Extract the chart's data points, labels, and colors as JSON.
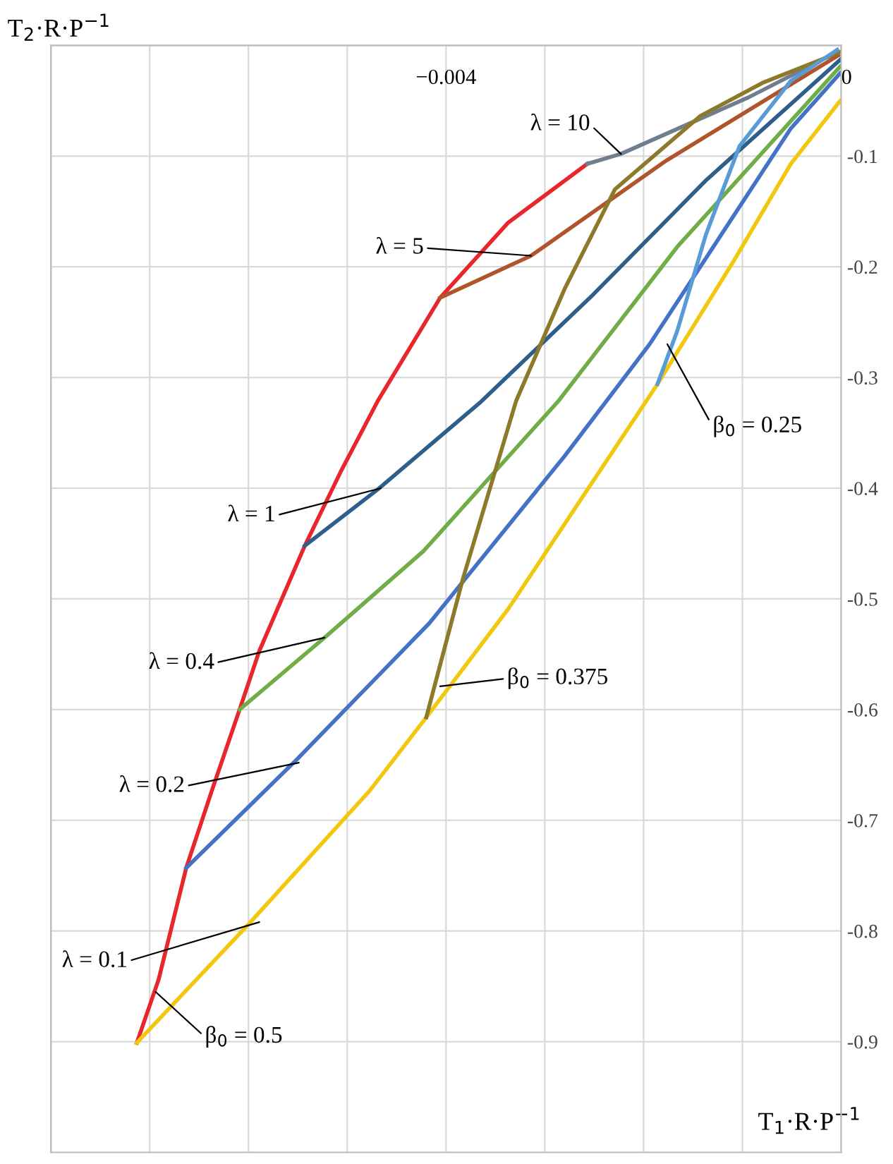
{
  "chart_data": {
    "type": "line",
    "xlabel": "T$_{1}$·R·P$^{−1}$",
    "ylabel": "T$_{2}$·R·P$^{−1}$",
    "xlim": [
      -0.008,
      0
    ],
    "ylim": [
      -1,
      0
    ],
    "xticks": [
      {
        "value": -0.008,
        "label": null
      },
      {
        "value": -0.007,
        "label": null
      },
      {
        "value": -0.006,
        "label": null
      },
      {
        "value": -0.005,
        "label": null
      },
      {
        "value": -0.004,
        "label": "−0.004"
      },
      {
        "value": -0.003,
        "label": null
      },
      {
        "value": -0.002,
        "label": null
      },
      {
        "value": -0.001,
        "label": null
      },
      0
    ],
    "yticks": [
      {
        "value": 0,
        "label": null
      },
      -0.1,
      -0.2,
      -0.3,
      -0.4,
      -0.5,
      -0.6,
      -0.7,
      -0.8,
      -0.9
    ],
    "grid": true,
    "legend": false,
    "marker": "none",
    "line_style": "solid",
    "series": [
      {
        "color": "#e8262b",
        "x": [
          -0.00713,
          -0.00691,
          -0.00663,
          -0.00637,
          -0.00609,
          -0.00589,
          -0.00543,
          -0.00506,
          -0.00469,
          -0.00406,
          -0.00337,
          -0.00257
        ],
        "values": [
          -0.901,
          -0.844,
          -0.743,
          -0.673,
          -0.6,
          -0.547,
          -0.452,
          -0.384,
          -0.321,
          -0.228,
          -0.16,
          -0.107
        ]
      },
      {
        "color": "#6f7f90",
        "x": [
          -0.00257,
          -0.00223,
          -0.00094,
          -4e-05
        ],
        "values": [
          -0.107,
          -0.098,
          -0.047,
          -0.006
        ]
      },
      {
        "color": "#b0542c",
        "x": [
          -0.00406,
          -0.00314,
          -0.00177,
          -3e-05
        ],
        "values": [
          -0.228,
          -0.19,
          -0.104,
          -0.009
        ]
      },
      {
        "color": "#2e5f8a",
        "x": [
          -0.00543,
          -0.00469,
          -0.00366,
          -0.00251,
          -0.00137,
          -1e-05
        ],
        "values": [
          -0.452,
          -0.401,
          -0.323,
          -0.225,
          -0.122,
          -0.013
        ]
      },
      {
        "color": "#70ad47",
        "x": [
          -0.00609,
          -0.00523,
          -0.00423,
          -0.00286,
          -0.00166,
          -1e-05
        ],
        "values": [
          -0.6,
          -0.535,
          -0.457,
          -0.321,
          -0.182,
          -0.019
        ]
      },
      {
        "color": "#4472c4",
        "x": [
          -0.00663,
          -0.00551,
          -0.00417,
          -0.0028,
          -0.00194,
          -0.00051,
          -1e-05
        ],
        "values": [
          -0.743,
          -0.645,
          -0.522,
          -0.371,
          -0.27,
          -0.075,
          -0.025
        ]
      },
      {
        "color": "#f2c80f",
        "x": [
          -0.00713,
          -0.006,
          -0.00477,
          -0.0042,
          -0.00337,
          -0.00186,
          -0.00109,
          -0.00051,
          -1e-05
        ],
        "values": [
          -0.901,
          -0.794,
          -0.673,
          -0.607,
          -0.509,
          -0.306,
          -0.195,
          -0.107,
          -0.05
        ]
      },
      {
        "color": "#8c7a2a",
        "x": [
          -0.0042,
          -0.00383,
          -0.00329,
          -0.0028,
          -0.00229,
          -0.00143,
          -0.0008,
          -1e-05
        ],
        "values": [
          -0.607,
          -0.482,
          -0.321,
          -0.22,
          -0.13,
          -0.064,
          -0.034,
          -0.006
        ]
      },
      {
        "color": "#5b9bd5",
        "x": [
          -0.00186,
          -0.00166,
          -0.00137,
          -0.00103,
          -0.00051,
          -4e-05
        ],
        "values": [
          -0.306,
          -0.258,
          -0.171,
          -0.091,
          -0.032,
          -0.004
        ]
      }
    ],
    "annotations": [
      {
        "text": "λ = 10",
        "x": -0.00223,
        "y": -0.098
      },
      {
        "text": "λ = 5",
        "x": -0.00314,
        "y": -0.19
      },
      {
        "text": "λ = 1",
        "x": -0.00466,
        "y": -0.4
      },
      {
        "text": "λ = 0.4",
        "x": -0.00523,
        "y": -0.535
      },
      {
        "text": "λ = 0.2",
        "x": -0.00549,
        "y": -0.648
      },
      {
        "text": "λ = 0.1",
        "x": -0.00589,
        "y": -0.792
      },
      {
        "text": "β$_{0}$ = 0.5",
        "x": -0.00694,
        "y": -0.855
      },
      {
        "text": "β$_{0}$ = 0.375",
        "x": -0.00406,
        "y": -0.579
      },
      {
        "text": "β$_{0}$ = 0.25",
        "x": -0.00176,
        "y": -0.27
      }
    ]
  }
}
